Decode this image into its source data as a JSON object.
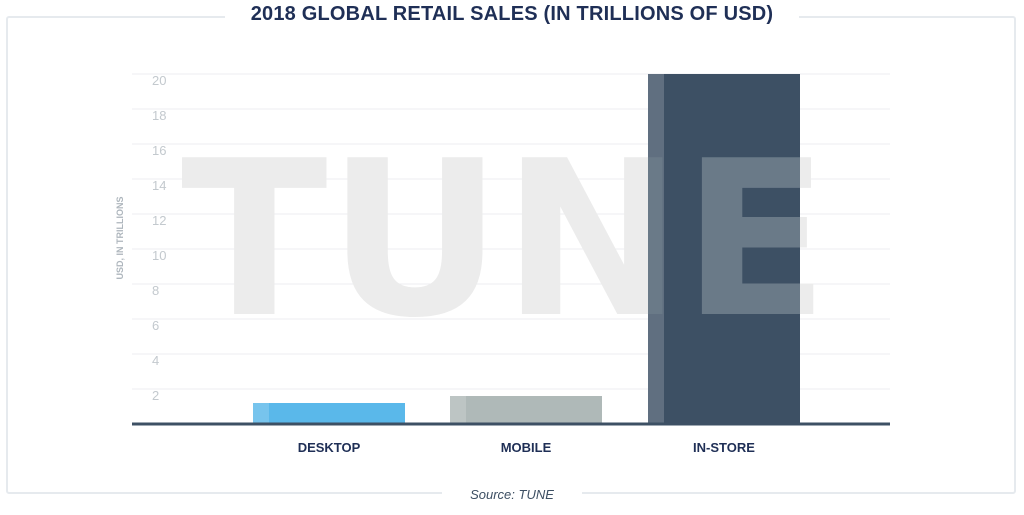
{
  "chart_data": {
    "type": "bar",
    "title": "2018 GLOBAL RETAIL SALES (IN TRILLIONS OF USD)",
    "ylabel": "USD, IN TRILLIONS",
    "xlabel": "",
    "categories": [
      "DESKTOP",
      "MOBILE",
      "IN-STORE"
    ],
    "values": [
      1.2,
      1.6,
      20
    ],
    "colors": [
      "#5ab8ea",
      "#afb9b8",
      "#3d5064"
    ],
    "ylim": [
      0,
      20
    ],
    "yticks": [
      2,
      4,
      6,
      8,
      10,
      12,
      14,
      16,
      18,
      20
    ],
    "grid": true,
    "source": "Source: TUNE",
    "watermark": "TUNE"
  }
}
